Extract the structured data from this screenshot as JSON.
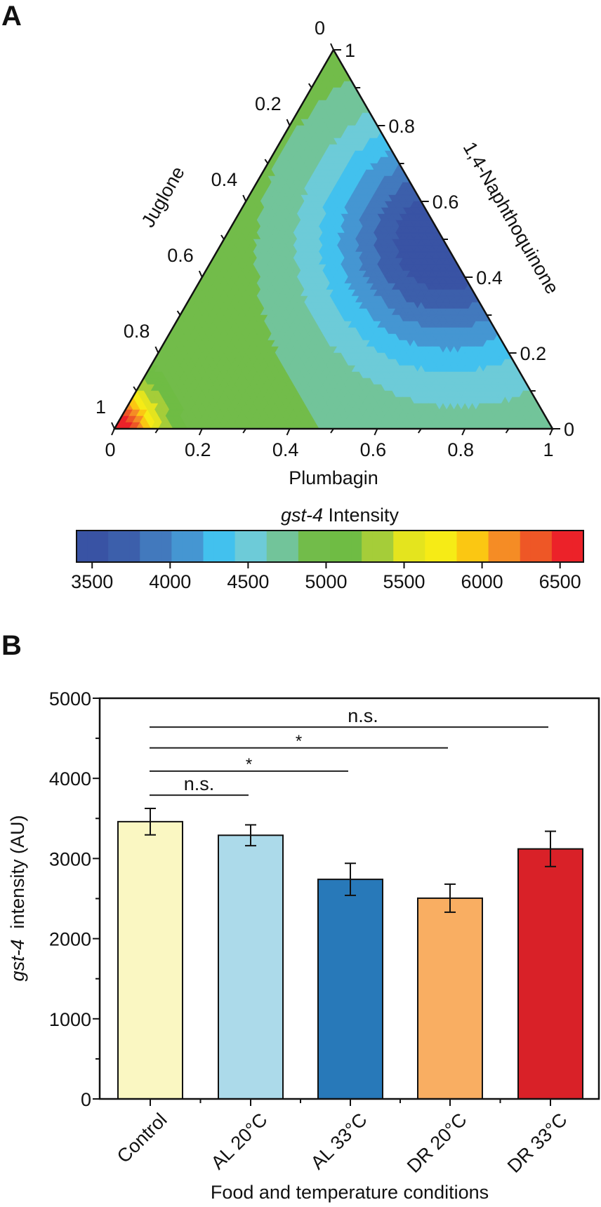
{
  "panels": {
    "a_label": "A",
    "b_label": "B"
  },
  "chart_data": [
    {
      "type": "heatmap",
      "subtype": "ternary-contour",
      "title": "",
      "axes": {
        "bottom": {
          "label": "Plumbagin",
          "ticks": [
            "0",
            "0.2",
            "0.4",
            "0.6",
            "0.8",
            "1"
          ]
        },
        "left": {
          "label": "Juglone",
          "ticks": [
            "1",
            "0.8",
            "0.6",
            "0.4",
            "0.2",
            "0"
          ]
        },
        "right": {
          "label": "1,4-Naphthoquinone",
          "ticks": [
            "0",
            "0.2",
            "0.4",
            "0.6",
            "0.8",
            "1"
          ]
        }
      },
      "surface_summary": {
        "minimum_region": {
          "plumbagin": 0.5,
          "juglone": 0.0,
          "naphthoquinone": 0.5,
          "approx_value": 3500
        },
        "maximum_region": {
          "plumbagin": 0.0,
          "juglone": 1.0,
          "naphthoquinone": 0.0,
          "approx_value": 6600
        },
        "top_vertex_value": 4900,
        "bottom_right_vertex_value": 4800
      },
      "colorbar": {
        "title_italic": "gst-4",
        "title_rest": " Intensity",
        "range": [
          3400,
          6650
        ],
        "ticks": [
          3500,
          4000,
          4500,
          5000,
          5500,
          6000,
          6500
        ],
        "colors": [
          "#3953a4",
          "#3c5fab",
          "#4279bd",
          "#4596d2",
          "#42c1ee",
          "#6dcbd8",
          "#72c49a",
          "#72bc4a",
          "#6fbc44",
          "#a5cd39",
          "#e4e41e",
          "#f6eb16",
          "#fbc712",
          "#f58c25",
          "#ee5726",
          "#ec2229"
        ]
      }
    },
    {
      "type": "bar",
      "categories": [
        "Control",
        "AL 20°C",
        "AL 33°C",
        "DR 20°C",
        "DR 33°C"
      ],
      "values": [
        3460,
        3290,
        2740,
        2505,
        3120
      ],
      "errors": [
        165,
        130,
        200,
        175,
        220
      ],
      "colors": [
        "#faf7c2",
        "#acdaea",
        "#2879b9",
        "#f9ae62",
        "#d92128"
      ],
      "xlabel": "Food and temperature conditions",
      "ylabel_italic": "gst-4",
      "ylabel_rest": "  intensity (AU)",
      "ylim": [
        0,
        5000
      ],
      "yticks": [
        0,
        1000,
        2000,
        3000,
        4000,
        5000
      ],
      "ytick_labels": [
        "0",
        "1000",
        "2000",
        "3000",
        "4000",
        "5000"
      ],
      "grid": false,
      "significance": [
        {
          "from": 0,
          "to": 1,
          "label": "n.s.",
          "y": 3790
        },
        {
          "from": 0,
          "to": 2,
          "label": "*",
          "y": 4090
        },
        {
          "from": 0,
          "to": 3,
          "label": "*",
          "y": 4380
        },
        {
          "from": 0,
          "to": 4,
          "label": "n.s.",
          "y": 4640
        }
      ]
    }
  ]
}
